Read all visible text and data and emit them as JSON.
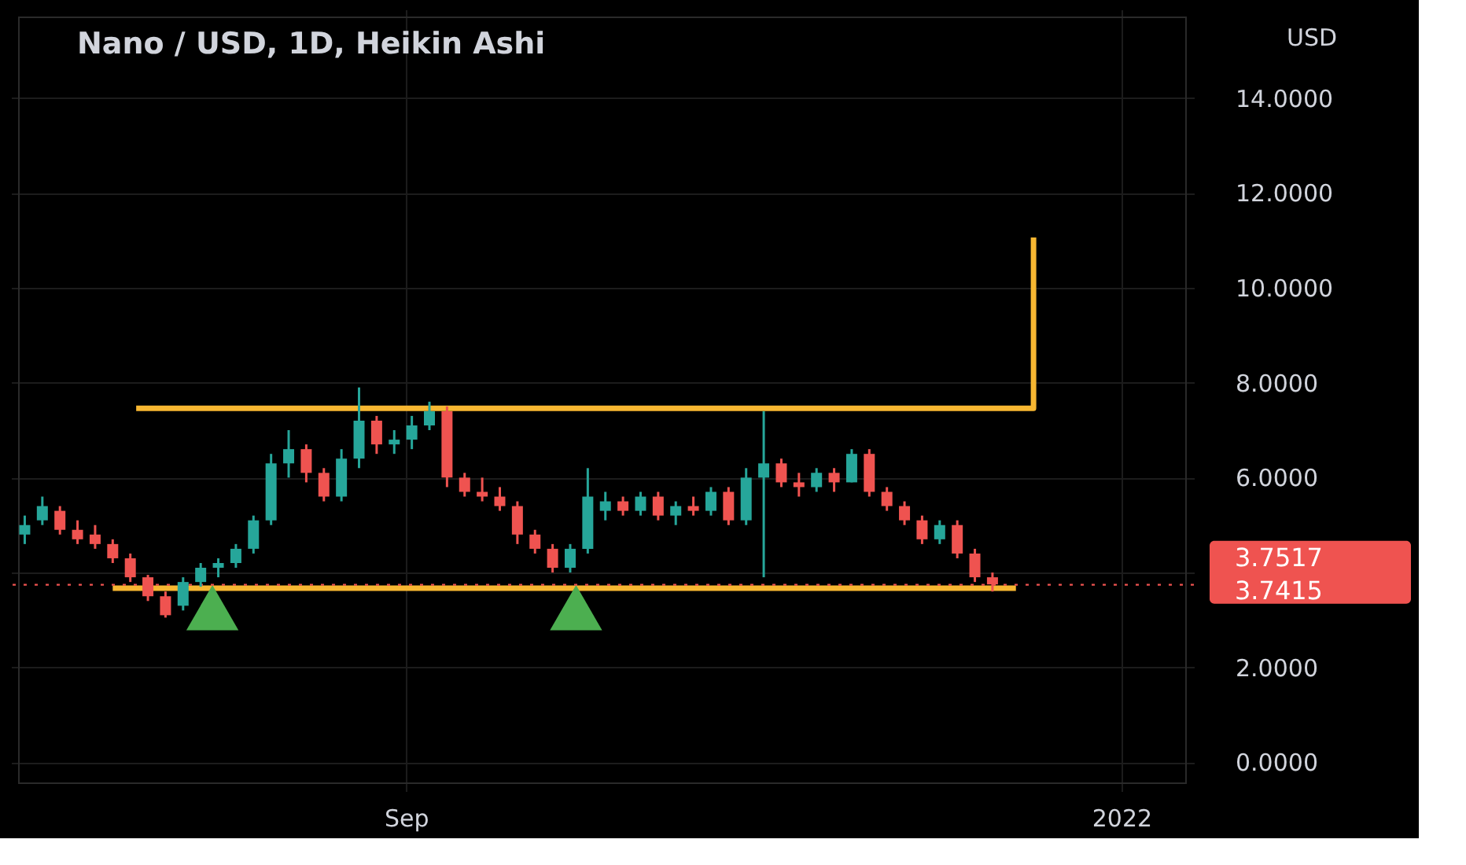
{
  "chart_data": {
    "type": "candlestick",
    "title": "Nano / USD, 1D, Heikin Ashi",
    "annotations": [
      "USD",
      "3.7517"
    ],
    "x": [
      "2021-06-28",
      "2021-07-01",
      "2021-07-04",
      "2021-07-07",
      "2021-07-10",
      "2021-07-13",
      "2021-07-16",
      "2021-07-19",
      "2021-07-22",
      "2021-07-25",
      "2021-07-28",
      "2021-07-31",
      "2021-08-03",
      "2021-08-06",
      "2021-08-09",
      "2021-08-12",
      "2021-08-15",
      "2021-08-18",
      "2021-08-21",
      "2021-08-24",
      "2021-08-27",
      "2021-08-30",
      "2021-09-02",
      "2021-09-05",
      "2021-09-08",
      "2021-09-11",
      "2021-09-14",
      "2021-09-17",
      "2021-09-20",
      "2021-09-23",
      "2021-09-26",
      "2021-09-29",
      "2021-10-02",
      "2021-10-05",
      "2021-10-08",
      "2021-10-11",
      "2021-10-14",
      "2021-10-17",
      "2021-10-20",
      "2021-10-23",
      "2021-10-26",
      "2021-10-29",
      "2021-11-01",
      "2021-11-04",
      "2021-11-07",
      "2021-11-10",
      "2021-11-13",
      "2021-11-16",
      "2021-11-19",
      "2021-11-22",
      "2021-11-25",
      "2021-11-28",
      "2021-12-01",
      "2021-12-04",
      "2021-12-07",
      "2021-12-10"
    ],
    "ohlc": [
      [
        4.8,
        5.2,
        4.6,
        5.0
      ],
      [
        5.1,
        5.6,
        5.0,
        5.4
      ],
      [
        5.3,
        5.4,
        4.8,
        4.9
      ],
      [
        4.9,
        5.1,
        4.6,
        4.7
      ],
      [
        4.8,
        5.0,
        4.5,
        4.6
      ],
      [
        4.6,
        4.7,
        4.2,
        4.3
      ],
      [
        4.3,
        4.4,
        3.8,
        3.9
      ],
      [
        3.9,
        3.95,
        3.4,
        3.5
      ],
      [
        3.5,
        3.6,
        3.05,
        3.1
      ],
      [
        3.3,
        3.9,
        3.2,
        3.8
      ],
      [
        3.8,
        4.2,
        3.7,
        4.1
      ],
      [
        4.1,
        4.3,
        3.9,
        4.2
      ],
      [
        4.2,
        4.6,
        4.1,
        4.5
      ],
      [
        4.5,
        5.2,
        4.4,
        5.1
      ],
      [
        5.1,
        6.5,
        5.0,
        6.3
      ],
      [
        6.3,
        7.0,
        6.0,
        6.6
      ],
      [
        6.6,
        6.7,
        5.9,
        6.1
      ],
      [
        6.1,
        6.2,
        5.5,
        5.6
      ],
      [
        5.6,
        6.6,
        5.5,
        6.4
      ],
      [
        6.4,
        7.9,
        6.2,
        7.2
      ],
      [
        7.2,
        7.3,
        6.5,
        6.7
      ],
      [
        6.7,
        7.0,
        6.5,
        6.8
      ],
      [
        6.8,
        7.3,
        6.6,
        7.1
      ],
      [
        7.1,
        7.6,
        7.0,
        7.4
      ],
      [
        7.4,
        7.5,
        5.8,
        6.0
      ],
      [
        6.0,
        6.1,
        5.6,
        5.7
      ],
      [
        5.7,
        6.0,
        5.5,
        5.6
      ],
      [
        5.6,
        5.8,
        5.3,
        5.4
      ],
      [
        5.4,
        5.5,
        4.6,
        4.8
      ],
      [
        4.8,
        4.9,
        4.4,
        4.5
      ],
      [
        4.5,
        4.6,
        4.0,
        4.1
      ],
      [
        4.1,
        4.6,
        4.0,
        4.5
      ],
      [
        4.5,
        6.2,
        4.4,
        5.6
      ],
      [
        5.3,
        5.7,
        5.1,
        5.5
      ],
      [
        5.5,
        5.6,
        5.2,
        5.3
      ],
      [
        5.3,
        5.7,
        5.2,
        5.6
      ],
      [
        5.6,
        5.7,
        5.1,
        5.2
      ],
      [
        5.2,
        5.5,
        5.0,
        5.4
      ],
      [
        5.4,
        5.6,
        5.2,
        5.3
      ],
      [
        5.3,
        5.8,
        5.2,
        5.7
      ],
      [
        5.7,
        5.8,
        5.0,
        5.1
      ],
      [
        5.1,
        6.2,
        5.0,
        6.0
      ],
      [
        6.0,
        7.4,
        3.9,
        6.3
      ],
      [
        6.3,
        6.4,
        5.8,
        5.9
      ],
      [
        5.9,
        6.1,
        5.6,
        5.8
      ],
      [
        5.8,
        6.2,
        5.7,
        6.1
      ],
      [
        6.1,
        6.2,
        5.7,
        5.9
      ],
      [
        5.9,
        6.6,
        5.9,
        6.5
      ],
      [
        6.5,
        6.6,
        5.6,
        5.7
      ],
      [
        5.7,
        5.8,
        5.3,
        5.4
      ],
      [
        5.4,
        5.5,
        5.0,
        5.1
      ],
      [
        5.1,
        5.2,
        4.6,
        4.7
      ],
      [
        4.7,
        5.1,
        4.6,
        5.0
      ],
      [
        5.0,
        5.1,
        4.3,
        4.4
      ],
      [
        4.4,
        4.5,
        3.8,
        3.9
      ],
      [
        3.9,
        4.0,
        3.6,
        3.75
      ]
    ],
    "colors": [
      "#26a69a",
      "#26a69a",
      "#ef5350",
      "#ef5350",
      "#ef5350",
      "#ef5350",
      "#ef5350",
      "#ef5350",
      "#ef5350",
      "#26a69a",
      "#26a69a",
      "#26a69a",
      "#26a69a",
      "#26a69a",
      "#26a69a",
      "#26a69a",
      "#ef5350",
      "#ef5350",
      "#26a69a",
      "#26a69a",
      "#ef5350",
      "#26a69a",
      "#26a69a",
      "#26a69a",
      "#ef5350",
      "#ef5350",
      "#ef5350",
      "#ef5350",
      "#ef5350",
      "#ef5350",
      "#ef5350",
      "#26a69a",
      "#26a69a",
      "#26a69a",
      "#ef5350",
      "#26a69a",
      "#ef5350",
      "#26a69a",
      "#ef5350",
      "#26a69a",
      "#ef5350",
      "#26a69a",
      "#26a69a",
      "#ef5350",
      "#ef5350",
      "#26a69a",
      "#ef5350",
      "#26a69a",
      "#ef5350",
      "#ef5350",
      "#ef5350",
      "#ef5350",
      "#26a69a",
      "#ef5350",
      "#ef5350",
      "#ef5350"
    ],
    "series": [
      {
        "type": "line",
        "color": "#f7b731",
        "x": [
          "2021-07-17",
          "2021-12-17",
          "2021-12-17"
        ],
        "values": [
          7.46,
          7.46,
          11.06
        ]
      },
      {
        "type": "line",
        "color": "#f7b731",
        "x": [
          "2021-07-13",
          "2021-12-14"
        ],
        "values": [
          3.67,
          3.67
        ]
      },
      {
        "type": "scatter",
        "marker": "triangle",
        "color": "#4caf50",
        "x": [
          "2021-07-30",
          "2021-09-30"
        ],
        "values": [
          3.26,
          3.26
        ]
      }
    ],
    "ref_lines": [
      {
        "axis": "y",
        "value": 3.7415,
        "label": "3.7415",
        "color": "#ef5350",
        "line_style": "dotted"
      }
    ],
    "xlim": [
      "2021-06-27",
      "2022-01-12"
    ],
    "xticks": [
      {
        "value": "2021-09-01",
        "label": "Sep"
      },
      {
        "value": "2022-01-01",
        "label": "2022"
      }
    ],
    "ylim": [
      -0.44,
      15.7
    ],
    "yticks": [
      {
        "value": 0,
        "label": "0.0000"
      },
      {
        "value": 2,
        "label": "2.0000"
      },
      {
        "value": 4,
        "label": null
      },
      {
        "value": 6,
        "label": "6.0000"
      },
      {
        "value": 8,
        "label": "8.0000"
      },
      {
        "value": 10,
        "label": "10.0000"
      },
      {
        "value": 12,
        "label": "12.0000"
      },
      {
        "value": 14,
        "label": "14.0000"
      }
    ],
    "grid": true
  }
}
